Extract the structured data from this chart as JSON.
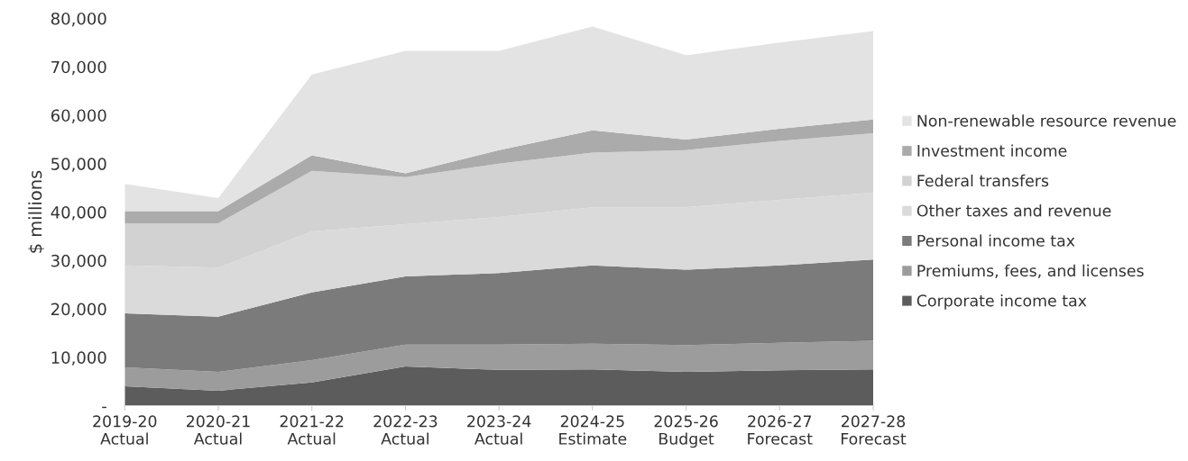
{
  "chart_data": {
    "type": "area",
    "stacked": true,
    "ylabel": "$ millions",
    "categories": [
      "2019-20\nActual",
      "2020-21\nActual",
      "2021-22\nActual",
      "2022-23\nActual",
      "2023-24\nActual",
      "2024-25\nEstimate",
      "2025-26\nBudget",
      "2026-27\nForecast",
      "2027-28\nForecast"
    ],
    "ylim": [
      0,
      80000
    ],
    "yticks": [
      {
        "value": 0,
        "label": "-"
      },
      {
        "value": 10000,
        "label": "10,000"
      },
      {
        "value": 20000,
        "label": "20,000"
      },
      {
        "value": 30000,
        "label": "30,000"
      },
      {
        "value": 40000,
        "label": "40,000"
      },
      {
        "value": 50000,
        "label": "50,000"
      },
      {
        "value": 60000,
        "label": "60,000"
      },
      {
        "value": 70000,
        "label": "70,000"
      },
      {
        "value": 80000,
        "label": "80,000"
      }
    ],
    "grid": false,
    "legend": "right",
    "series": [
      {
        "name": "Corporate income tax",
        "color": "#5c5c5c",
        "values": [
          4000,
          3100,
          4800,
          8100,
          7400,
          7500,
          7000,
          7300,
          7500
        ]
      },
      {
        "name": "Premiums, fees, and licenses",
        "color": "#9c9c9c",
        "values": [
          3900,
          3900,
          4600,
          4500,
          5200,
          5300,
          5500,
          5700,
          5900
        ]
      },
      {
        "name": "Personal income tax",
        "color": "#7b7b7b",
        "values": [
          11200,
          11400,
          14000,
          14100,
          14800,
          16200,
          15600,
          16000,
          16800
        ]
      },
      {
        "name": "Other taxes and revenue",
        "color": "#dadada",
        "values": [
          9900,
          10100,
          12600,
          10800,
          11600,
          12000,
          12900,
          13500,
          13800
        ]
      },
      {
        "name": "Federal transfers",
        "color": "#d2d2d2",
        "values": [
          8700,
          9200,
          12500,
          9700,
          11000,
          11300,
          11800,
          12200,
          12300
        ]
      },
      {
        "name": "Investment income",
        "color": "#ababab",
        "values": [
          2500,
          2500,
          3200,
          800,
          2800,
          4600,
          2200,
          2500,
          2800
        ]
      },
      {
        "name": "Non-renewable resource revenue",
        "color": "#e3e3e3",
        "values": [
          5600,
          2700,
          16700,
          25300,
          20500,
          21400,
          17400,
          17800,
          18300
        ]
      }
    ]
  }
}
